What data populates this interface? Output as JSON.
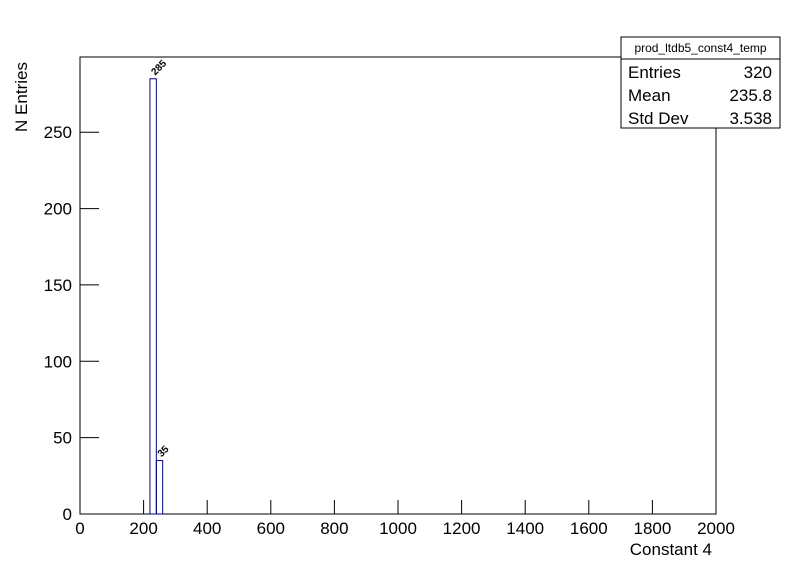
{
  "chart_data": {
    "type": "histogram",
    "x_label": "Constant 4",
    "y_label": "N Entries",
    "bins": [
      220,
      240,
      260
    ],
    "values": [
      285,
      35
    ],
    "color": "#000080",
    "xlim": [
      0,
      2000
    ],
    "xticks": [
      0,
      200,
      400,
      600,
      800,
      1000,
      1200,
      1400,
      1600,
      1800,
      2000
    ],
    "ylim": [
      0,
      299.25
    ],
    "yticks": [
      0,
      50,
      100,
      150,
      200,
      250
    ],
    "stats": {
      "title": "prod_ltdb5_const4_temp",
      "rows": [
        {
          "label": "Entries",
          "value": 320
        },
        {
          "label": "Mean",
          "value": 235.8
        },
        {
          "label": "Std Dev",
          "value": 3.538
        }
      ]
    }
  }
}
